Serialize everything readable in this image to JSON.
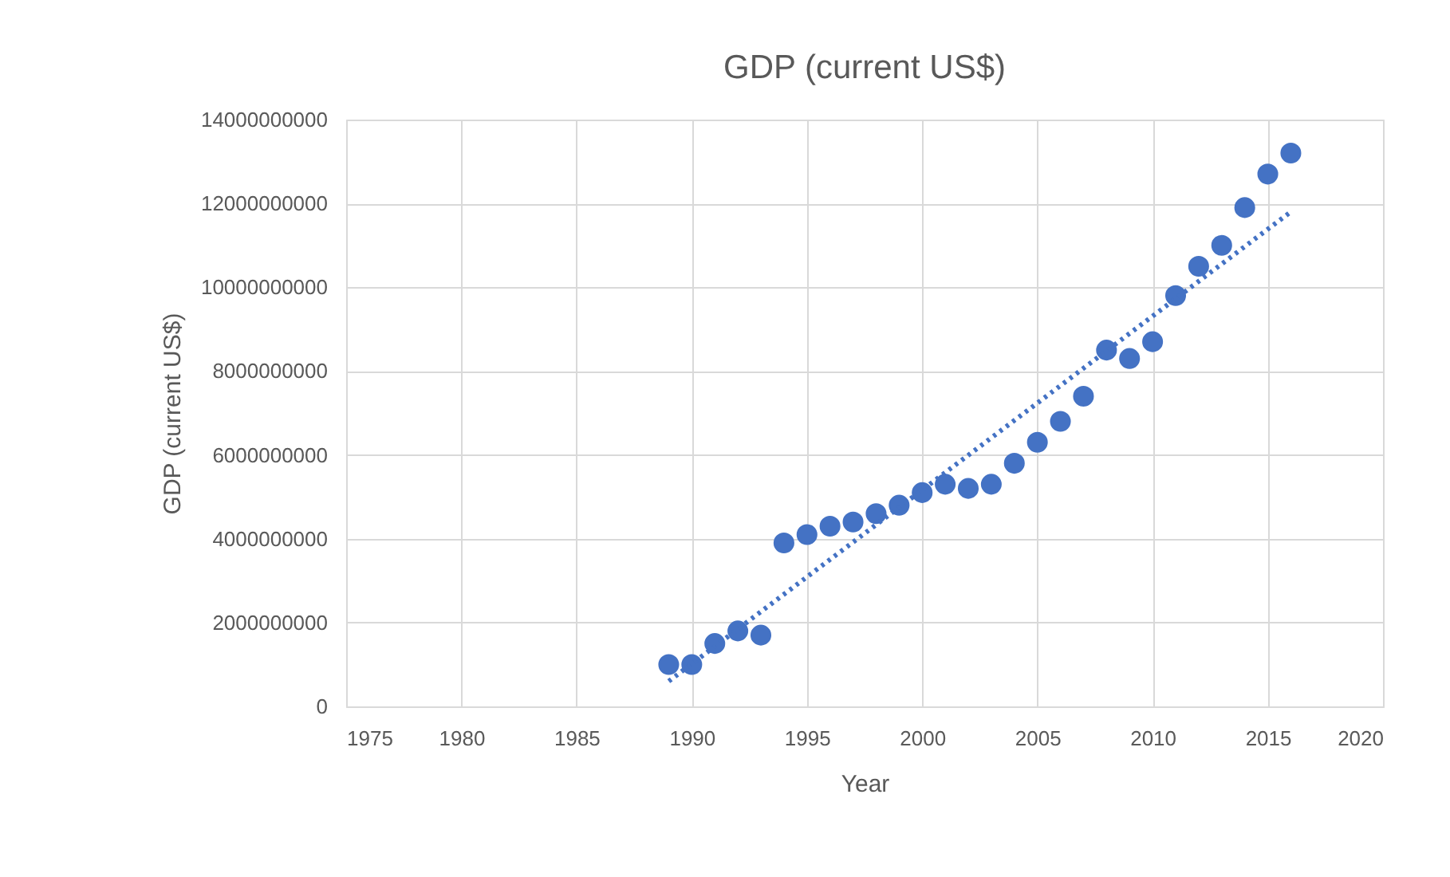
{
  "chart_data": {
    "type": "scatter",
    "title": "GDP (current US$)",
    "xlabel": "Year",
    "ylabel": "GDP (current US$)",
    "xlim": [
      1975,
      2020
    ],
    "xticks": [
      1975,
      1980,
      1985,
      1990,
      1995,
      2000,
      2005,
      2010,
      2015,
      2020
    ],
    "ylim": [
      0,
      14000000000
    ],
    "yticks": [
      0,
      2000000000,
      4000000000,
      6000000000,
      8000000000,
      10000000000,
      12000000000,
      14000000000
    ],
    "grid": true,
    "legend": false,
    "series": [
      {
        "type": "scatter",
        "color": "#4472c4",
        "marker": "circle",
        "x": [
          1989,
          1990,
          1991,
          1992,
          1993,
          1994,
          1995,
          1996,
          1997,
          1998,
          1999,
          2000,
          2001,
          2002,
          2003,
          2004,
          2005,
          2006,
          2007,
          2008,
          2009,
          2010,
          2011,
          2012,
          2013,
          2014,
          2015,
          2016
        ],
        "values": [
          1000000000,
          1000000000,
          1500000000,
          1800000000,
          1700000000,
          3900000000,
          4100000000,
          4300000000,
          4400000000,
          4600000000,
          4800000000,
          5100000000,
          5300000000,
          5200000000,
          5300000000,
          5800000000,
          6300000000,
          6800000000,
          7400000000,
          8500000000,
          8300000000,
          8700000000,
          9800000000,
          10500000000,
          11000000000,
          11900000000,
          12700000000,
          13200000000
        ]
      },
      {
        "type": "line",
        "color": "#4472c4",
        "line_style": "dotted",
        "x": [
          1989,
          2016
        ],
        "values": [
          600000000,
          11800000000
        ]
      }
    ]
  }
}
